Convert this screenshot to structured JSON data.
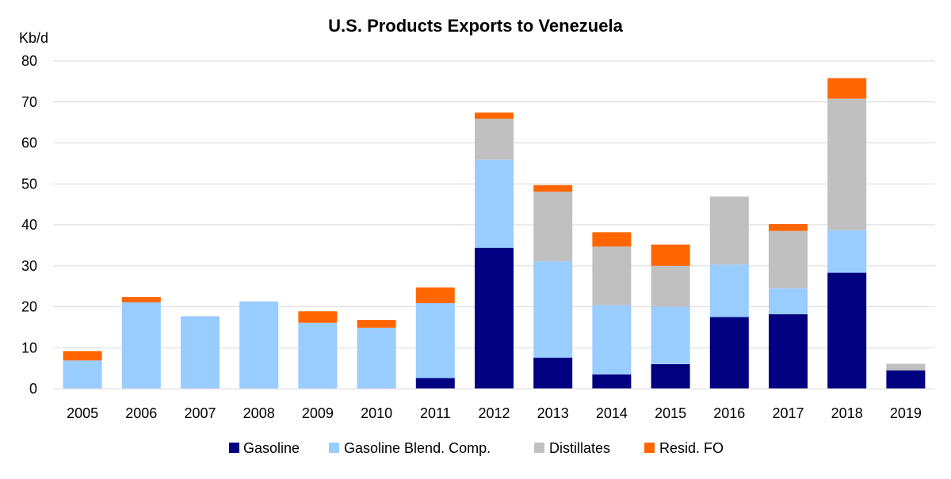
{
  "chart_data": {
    "type": "bar",
    "stacked": true,
    "title": "U.S. Products Exports to Venezuela",
    "y_unit_label": "Kb/d",
    "xlabel": "",
    "ylabel": "",
    "ylim": [
      0,
      80
    ],
    "y_ticks": [
      "0",
      "10",
      "20",
      "30",
      "40",
      "50",
      "60",
      "70",
      "80"
    ],
    "grid": true,
    "legend_position": "bottom",
    "categories": [
      "2005",
      "2006",
      "2007",
      "2008",
      "2009",
      "2010",
      "2011",
      "2012",
      "2013",
      "2014",
      "2015",
      "2016",
      "2017",
      "2018",
      "2019"
    ],
    "series": [
      {
        "name": "Gasoline",
        "color": "#000080",
        "values": [
          0,
          0,
          0,
          0,
          0,
          0,
          2.6,
          34.4,
          7.6,
          3.5,
          6.0,
          17.5,
          18.2,
          28.3,
          4.5
        ]
      },
      {
        "name": "Gasoline Blend. Comp.",
        "color": "#99CCFF",
        "values": [
          6.9,
          21.1,
          17.7,
          21.3,
          16.1,
          14.9,
          18.3,
          21.5,
          23.5,
          16.9,
          14.0,
          12.8,
          6.3,
          10.4,
          0
        ]
      },
      {
        "name": "Distillates",
        "color": "#C0C0C0",
        "values": [
          0,
          0,
          0,
          0,
          0,
          0,
          0,
          10.0,
          17.0,
          14.3,
          10.0,
          16.6,
          14.0,
          32.1,
          1.6
        ]
      },
      {
        "name": "Resid. FO",
        "color": "#FF6600",
        "values": [
          2.3,
          1.3,
          0,
          0,
          2.8,
          1.9,
          3.8,
          1.5,
          1.6,
          3.5,
          5.2,
          0,
          1.7,
          5.0,
          0
        ]
      }
    ]
  }
}
